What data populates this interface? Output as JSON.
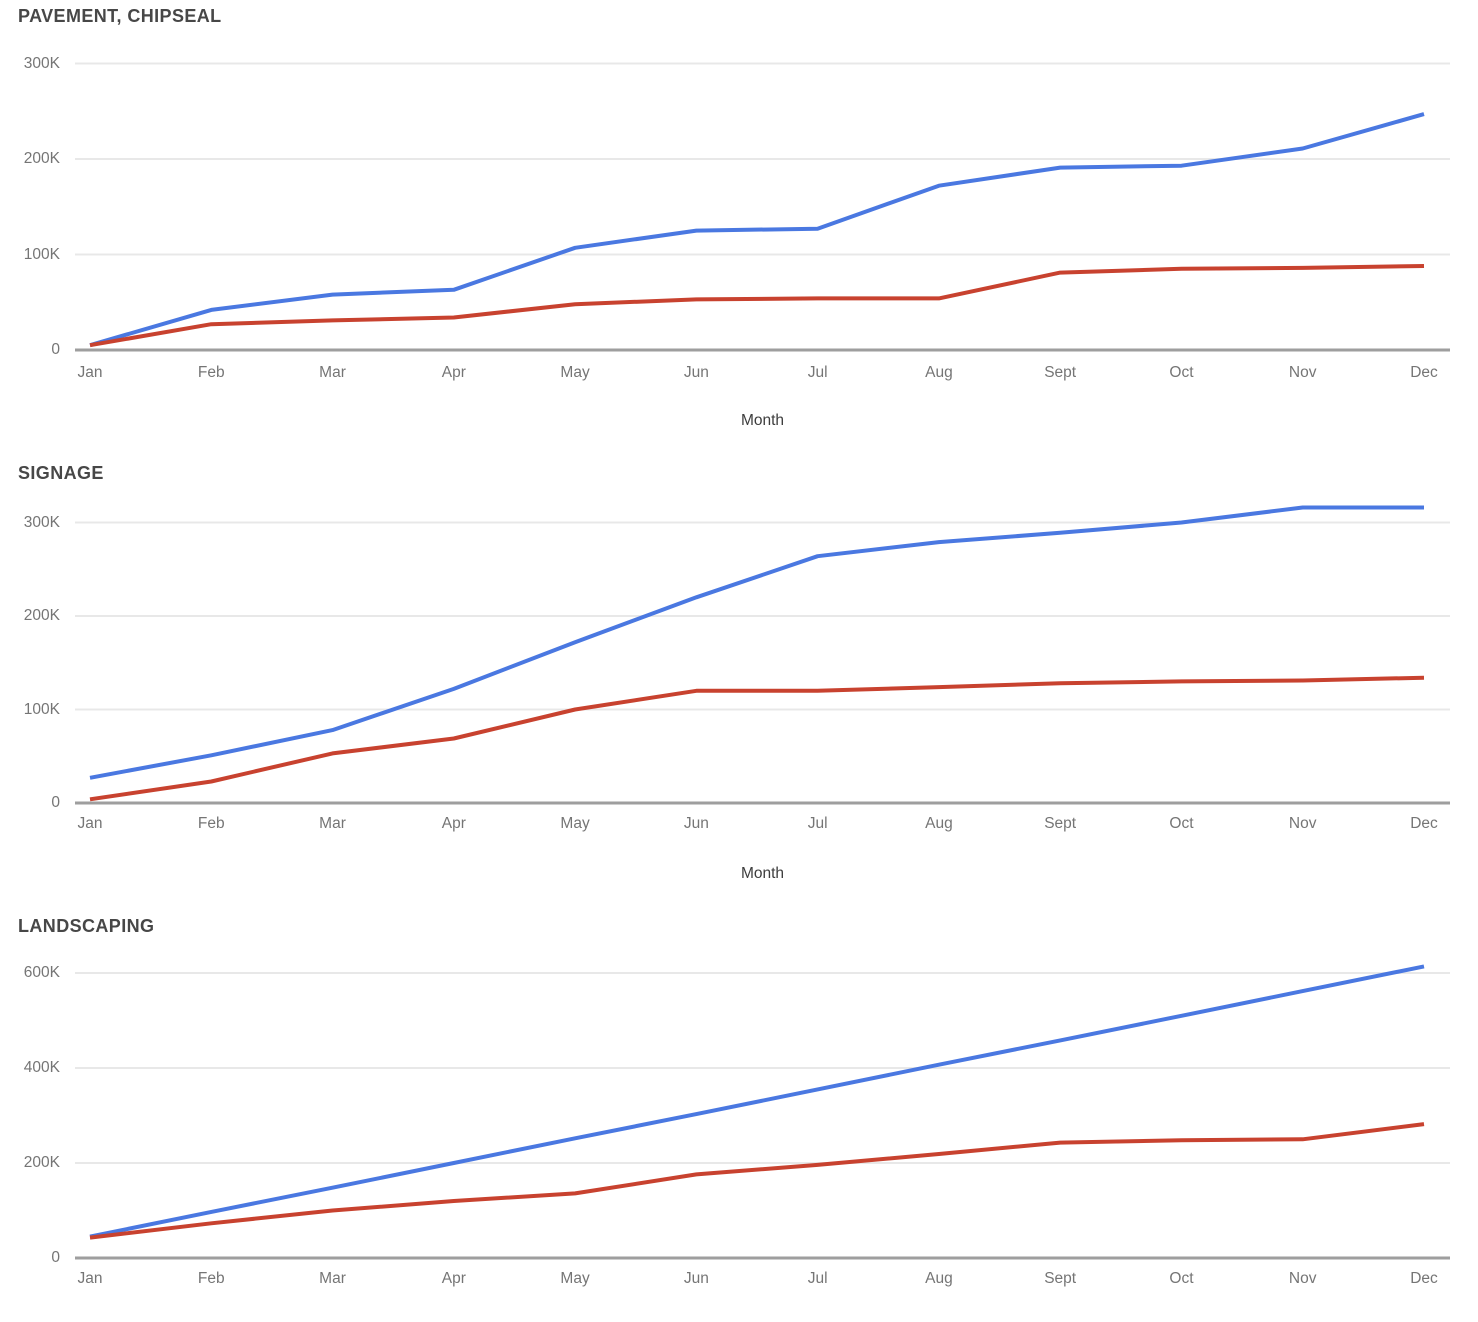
{
  "page": {
    "background": "#ffffff"
  },
  "style": {
    "series_blue_color": "#4A78E1",
    "series_red_color": "#C8422F",
    "gridline_color": "#E8E8E8",
    "axis_line_color": "#9E9E9E",
    "tick_label_color": "#757575",
    "title_color": "#474747"
  },
  "chart_data": [
    {
      "type": "line",
      "title": "PAVEMENT, CHIPSEAL",
      "xlabel": "Month",
      "ylabel": "",
      "legend": "none",
      "grid": true,
      "ylim": [
        0,
        300000
      ],
      "yticks": [
        {
          "label": "0",
          "value": 0
        },
        {
          "label": "100K",
          "value": 100000
        },
        {
          "label": "200K",
          "value": 200000
        },
        {
          "label": "300K",
          "value": 300000
        }
      ],
      "categories": [
        "Jan",
        "Feb",
        "Mar",
        "Apr",
        "May",
        "Jun",
        "Jul",
        "Aug",
        "Sept",
        "Oct",
        "Nov",
        "Dec"
      ],
      "series": [
        {
          "name": "blue",
          "color": "#4A78E1",
          "values": [
            5000,
            42000,
            58000,
            63000,
            107000,
            125000,
            127000,
            172000,
            191000,
            193000,
            211000,
            247000
          ]
        },
        {
          "name": "red",
          "color": "#C8422F",
          "values": [
            5000,
            27000,
            31000,
            34000,
            48000,
            53000,
            54000,
            54000,
            81000,
            85000,
            86000,
            88000
          ]
        }
      ]
    },
    {
      "type": "line",
      "title": "SIGNAGE",
      "xlabel": "Month",
      "ylabel": "",
      "legend": "none",
      "grid": true,
      "ylim": [
        0,
        300000
      ],
      "yticks": [
        {
          "label": "0",
          "value": 0
        },
        {
          "label": "100K",
          "value": 100000
        },
        {
          "label": "200K",
          "value": 200000
        },
        {
          "label": "300K",
          "value": 300000
        }
      ],
      "categories": [
        "Jan",
        "Feb",
        "Mar",
        "Apr",
        "May",
        "Jun",
        "Jul",
        "Aug",
        "Sept",
        "Oct",
        "Nov",
        "Dec"
      ],
      "series": [
        {
          "name": "blue",
          "color": "#4A78E1",
          "values": [
            27000,
            51000,
            78000,
            122000,
            172000,
            220000,
            264000,
            279000,
            289000,
            300000,
            316000,
            316000
          ]
        },
        {
          "name": "red",
          "color": "#C8422F",
          "values": [
            4000,
            23000,
            53000,
            69000,
            100000,
            120000,
            120000,
            124000,
            128000,
            130000,
            131000,
            134000
          ]
        }
      ]
    },
    {
      "type": "line",
      "title": "LANDSCAPING",
      "xlabel": "",
      "ylabel": "",
      "legend": "none",
      "grid": true,
      "ylim": [
        0,
        600000
      ],
      "yticks": [
        {
          "label": "0",
          "value": 0
        },
        {
          "label": "200K",
          "value": 200000
        },
        {
          "label": "400K",
          "value": 400000
        },
        {
          "label": "600K",
          "value": 600000
        }
      ],
      "categories": [
        "Jan",
        "Feb",
        "Mar",
        "Apr",
        "May",
        "Jun",
        "Jul",
        "Aug",
        "Sept",
        "Oct",
        "Nov",
        "Dec"
      ],
      "series": [
        {
          "name": "blue",
          "color": "#4A78E1",
          "values": [
            45000,
            97000,
            148000,
            200000,
            252000,
            303000,
            355000,
            407000,
            458000,
            510000,
            562000,
            614000
          ]
        },
        {
          "name": "red",
          "color": "#C8422F",
          "values": [
            43000,
            73000,
            100000,
            120000,
            136000,
            176000,
            196000,
            219000,
            243000,
            248000,
            250000,
            282000
          ]
        }
      ]
    }
  ]
}
